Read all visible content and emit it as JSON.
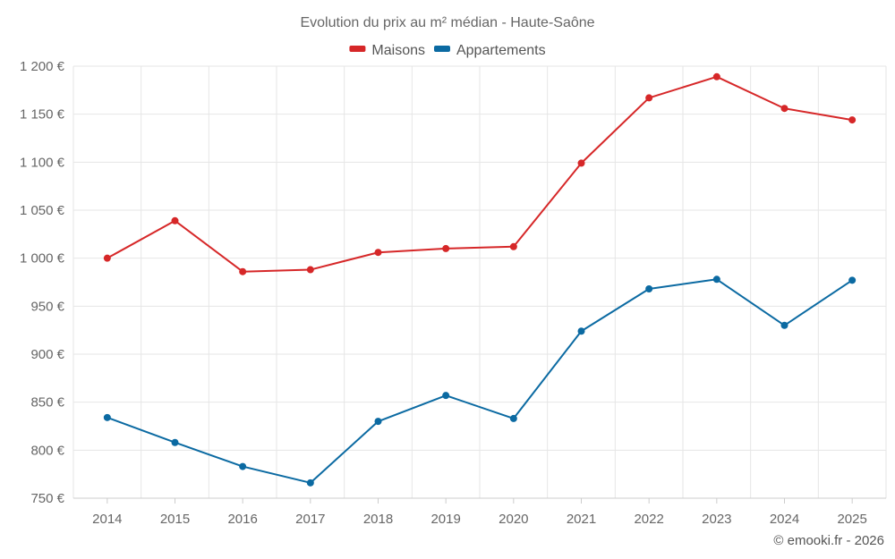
{
  "chart_data": {
    "type": "line",
    "title": "Evolution du prix au m² médian - Haute-Saône",
    "categories": [
      "2014",
      "2015",
      "2016",
      "2017",
      "2018",
      "2019",
      "2020",
      "2021",
      "2022",
      "2023",
      "2024",
      "2025"
    ],
    "series": [
      {
        "name": "Maisons",
        "color": "#d62728",
        "values": [
          1000,
          1039,
          986,
          988,
          1006,
          1010,
          1012,
          1099,
          1167,
          1189,
          1156,
          1144
        ]
      },
      {
        "name": "Appartements",
        "color": "#0b6aa2",
        "values": [
          834,
          808,
          783,
          766,
          830,
          857,
          833,
          924,
          968,
          978,
          930,
          977
        ]
      }
    ],
    "ylim": [
      750,
      1200
    ],
    "yticks": [
      750,
      800,
      850,
      900,
      950,
      1000,
      1050,
      1100,
      1150,
      1200
    ],
    "ytick_labels": [
      "750 €",
      "800 €",
      "850 €",
      "900 €",
      "950 €",
      "1 000 €",
      "1 050 €",
      "1 100 €",
      "1 150 €",
      "1 200 €"
    ],
    "legend_position": "top-center",
    "grid": true
  },
  "credit": "© emooki.fr - 2026"
}
